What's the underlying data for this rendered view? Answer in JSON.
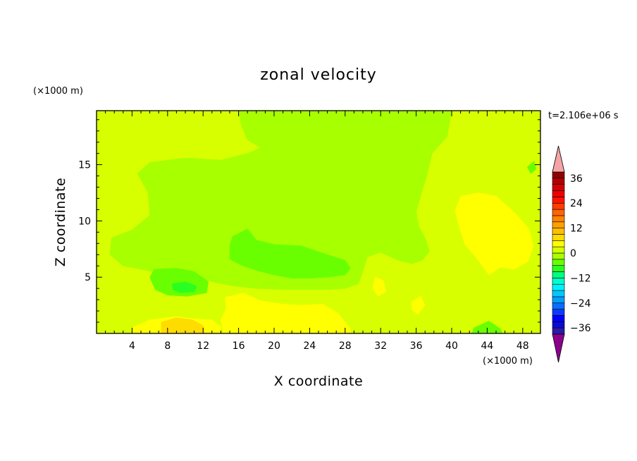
{
  "chart_data": {
    "type": "heatmap",
    "title": "zonal velocity",
    "xlabel": "X coordinate",
    "ylabel": "Z coordinate",
    "x_unit": "(×1000 m)",
    "y_unit": "(×1000 m)",
    "time_label": "t=2.106e+06 s",
    "xlim": [
      0,
      50
    ],
    "ylim": [
      0,
      19.8
    ],
    "x_ticks": [
      4,
      8,
      12,
      16,
      20,
      24,
      28,
      32,
      36,
      40,
      44,
      48
    ],
    "y_ticks": [
      5,
      10,
      15
    ],
    "colorbar": {
      "levels": [
        -42,
        -39,
        -36,
        -33,
        -30,
        -27,
        -24,
        -21,
        -18,
        -15,
        -12,
        -9,
        -6,
        -3,
        0,
        3,
        6,
        9,
        12,
        15,
        18,
        21,
        24,
        27,
        30,
        33,
        36,
        39,
        42
      ],
      "tick_values": [
        -36,
        -24,
        -12,
        0,
        12,
        24,
        36
      ],
      "tick_labels": [
        "−36",
        "−24",
        "−12",
        "0",
        "12",
        "24",
        "36"
      ],
      "colors": [
        "#560092",
        "#2b1aa8",
        "#0a0ad2",
        "#0000ff",
        "#0a3cff",
        "#0a6eff",
        "#00a0ff",
        "#00c8ff",
        "#00f0ff",
        "#00ffc8",
        "#00ff80",
        "#2aff20",
        "#6aff00",
        "#a8ff00",
        "#d8ff00",
        "#ffff00",
        "#ffdc00",
        "#ffbe00",
        "#ffa000",
        "#ff8200",
        "#ff6400",
        "#ff3c00",
        "#ff1400",
        "#f00000",
        "#d40000",
        "#b40000",
        "#900000",
        "#700000"
      ],
      "under_color": "#8b008b",
      "over_color": "#f4a4a4"
    },
    "regions": [
      {
        "value": 1.5,
        "polygon": [
          [
            0,
            0
          ],
          [
            50,
            0
          ],
          [
            50,
            19.8
          ],
          [
            0,
            19.8
          ]
        ]
      },
      {
        "value": -1.5,
        "polygon": [
          [
            16,
            19.8
          ],
          [
            40,
            19.8
          ],
          [
            39.5,
            17.5
          ],
          [
            37.8,
            16
          ],
          [
            37.2,
            14
          ],
          [
            36.5,
            12.2
          ],
          [
            36,
            10.8
          ],
          [
            36.3,
            9.5
          ],
          [
            37,
            8.5
          ],
          [
            37.5,
            7.3
          ],
          [
            36.7,
            6.5
          ],
          [
            35.5,
            6.2
          ],
          [
            34,
            6.5
          ],
          [
            32,
            7.2
          ],
          [
            30.5,
            6.8
          ],
          [
            30,
            5.5
          ],
          [
            29.5,
            4.4
          ],
          [
            28,
            4
          ],
          [
            26,
            3.9
          ],
          [
            24,
            3.9
          ],
          [
            21,
            3.9
          ],
          [
            18,
            4
          ],
          [
            15.5,
            4.2
          ],
          [
            13.5,
            4.5
          ],
          [
            11,
            5
          ],
          [
            7,
            5.4
          ],
          [
            3,
            6
          ],
          [
            1.5,
            7
          ],
          [
            1.7,
            8.5
          ],
          [
            4,
            9.2
          ],
          [
            6,
            10.5
          ],
          [
            5.8,
            12.5
          ],
          [
            4.6,
            14.2
          ],
          [
            6,
            15.2
          ],
          [
            10,
            15.6
          ],
          [
            14,
            15.4
          ],
          [
            17,
            16
          ],
          [
            18.5,
            16.5
          ],
          [
            17,
            17.2
          ],
          [
            16.3,
            18.5
          ]
        ]
      },
      {
        "value": 4.5,
        "polygon": [
          [
            41,
            12.2
          ],
          [
            43,
            12.5
          ],
          [
            45,
            12.2
          ],
          [
            47,
            10.8
          ],
          [
            48.7,
            9.3
          ],
          [
            49.2,
            7.8
          ],
          [
            48.6,
            6.4
          ],
          [
            47,
            5.7
          ],
          [
            45.5,
            5.9
          ],
          [
            44.2,
            5.2
          ],
          [
            43,
            6.5
          ],
          [
            41.5,
            7.9
          ],
          [
            40.8,
            9.6
          ],
          [
            40.4,
            10.9
          ]
        ]
      },
      {
        "value": 4.5,
        "polygon": [
          [
            14.5,
            3.2
          ],
          [
            16.5,
            3.6
          ],
          [
            18.5,
            2.9
          ],
          [
            21,
            2.6
          ],
          [
            23,
            2.5
          ],
          [
            25.5,
            2.6
          ],
          [
            27.2,
            1.8
          ],
          [
            28.5,
            0.5
          ],
          [
            28.7,
            0
          ],
          [
            14.3,
            0
          ],
          [
            14,
            1.2
          ],
          [
            14.6,
            2.2
          ]
        ]
      },
      {
        "value": 4.5,
        "polygon": [
          [
            4,
            0.5
          ],
          [
            6,
            1.2
          ],
          [
            9,
            1.5
          ],
          [
            11,
            1.3
          ],
          [
            13,
            1.2
          ],
          [
            14,
            0.6
          ],
          [
            14,
            0
          ],
          [
            4,
            0
          ]
        ]
      },
      {
        "value": 7.5,
        "polygon": [
          [
            7.3,
            1
          ],
          [
            9,
            1.4
          ],
          [
            10.8,
            1.2
          ],
          [
            12,
            0.7
          ],
          [
            12.2,
            0
          ],
          [
            7.3,
            0
          ]
        ]
      },
      {
        "value": 4.5,
        "polygon": [
          [
            31.4,
            5
          ],
          [
            32.3,
            4.7
          ],
          [
            32.6,
            3.7
          ],
          [
            31.7,
            3.3
          ],
          [
            31.1,
            4
          ]
        ]
      },
      {
        "value": 4.5,
        "polygon": [
          [
            35.5,
            2.8
          ],
          [
            36.5,
            3.3
          ],
          [
            37,
            2.5
          ],
          [
            36.2,
            1.7
          ],
          [
            35.5,
            2.1
          ]
        ]
      },
      {
        "value": -4.5,
        "polygon": [
          [
            15.3,
            8.6
          ],
          [
            17,
            9.3
          ],
          [
            18,
            8.3
          ],
          [
            20,
            7.9
          ],
          [
            23,
            7.8
          ],
          [
            26,
            7
          ],
          [
            28,
            6.5
          ],
          [
            28.6,
            5.8
          ],
          [
            28,
            5.2
          ],
          [
            26,
            5
          ],
          [
            24,
            4.9
          ],
          [
            22,
            4.9
          ],
          [
            20,
            5.2
          ],
          [
            18,
            5.6
          ],
          [
            16.5,
            6
          ],
          [
            15,
            6.6
          ],
          [
            15,
            7.8
          ]
        ]
      },
      {
        "value": -4.5,
        "polygon": [
          [
            6.5,
            5.7
          ],
          [
            9,
            5.8
          ],
          [
            11,
            5.5
          ],
          [
            12.6,
            4.6
          ],
          [
            12.4,
            3.6
          ],
          [
            10.2,
            3.3
          ],
          [
            8,
            3.4
          ],
          [
            6.6,
            3.9
          ],
          [
            6,
            5
          ]
        ]
      },
      {
        "value": -7.5,
        "polygon": [
          [
            8.5,
            4.4
          ],
          [
            10,
            4.6
          ],
          [
            11.3,
            4.2
          ],
          [
            11,
            3.7
          ],
          [
            9.5,
            3.6
          ],
          [
            8.6,
            3.9
          ]
        ]
      },
      {
        "value": -4.5,
        "polygon": [
          [
            42.5,
            0.5
          ],
          [
            44.2,
            1.1
          ],
          [
            45.5,
            0.4
          ],
          [
            45.7,
            0
          ],
          [
            42.3,
            0
          ]
        ]
      },
      {
        "value": -4.5,
        "polygon": [
          [
            48.5,
            14.8
          ],
          [
            49.3,
            15.3
          ],
          [
            49.5,
            14.6
          ],
          [
            48.9,
            14.2
          ]
        ]
      }
    ]
  }
}
